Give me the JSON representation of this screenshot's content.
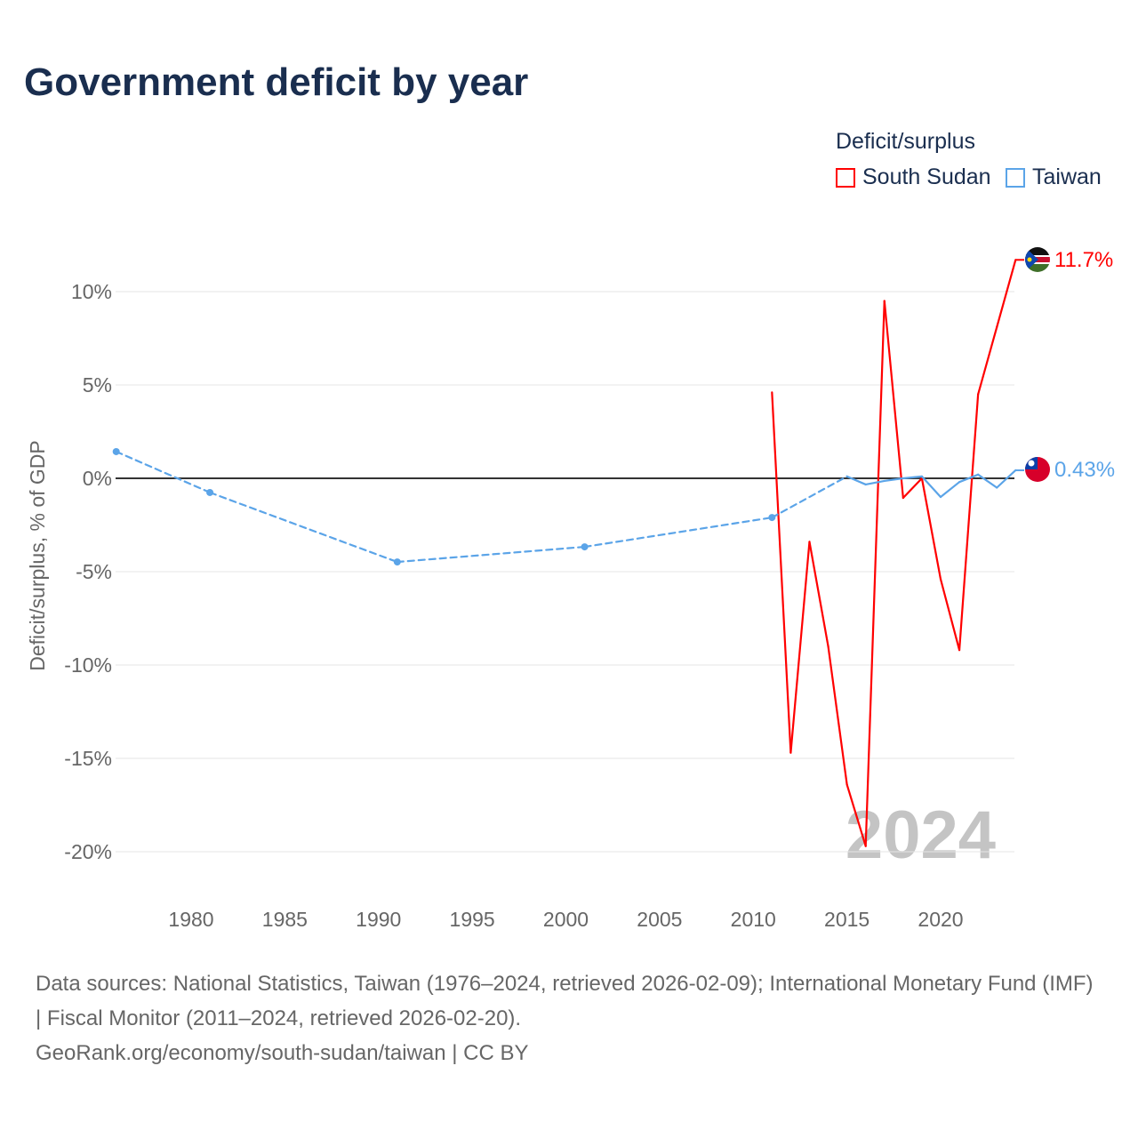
{
  "title": "Government deficit by year",
  "legend": {
    "title": "Deficit/surplus",
    "items": [
      "South Sudan",
      "Taiwan"
    ]
  },
  "footer": {
    "sources": "Data sources: National Statistics, Taiwan (1976–2024, retrieved 2026-02-09); International Monetary Fund (IMF) | Fiscal Monitor (2011–2024, retrieved 2026-02-20).",
    "link": "GeoRank.org/economy/south-sudan/taiwan | CC BY"
  },
  "chart_data": {
    "type": "line",
    "title": "Government deficit by year",
    "ylabel": "Deficit/surplus, % of GDP",
    "xlabel": "",
    "xlim": [
      1976,
      2024
    ],
    "ylim": [
      -22,
      13
    ],
    "xticks": [
      1980,
      1985,
      1990,
      1995,
      2000,
      2005,
      2010,
      2015,
      2020
    ],
    "xtick_labels": [
      "1980",
      "1985",
      "1990",
      "1995",
      "2000",
      "2005",
      "2010",
      "2015",
      "2020"
    ],
    "yticks": [
      10,
      5,
      0,
      -5,
      -10,
      -15,
      -20
    ],
    "ytick_labels": [
      "10%",
      "5%",
      "0%",
      "-5%",
      "-10%",
      "-15%",
      "-20%"
    ],
    "watermark_year": "2024",
    "grid": true,
    "legend_position": "top-right",
    "series": [
      {
        "name": "South Sudan",
        "color": "#ff0000",
        "end_label": "11.7%",
        "x": [
          2011,
          2012,
          2013,
          2014,
          2015,
          2016,
          2017,
          2018,
          2019,
          2020,
          2021,
          2022,
          2023,
          2024
        ],
        "y": [
          4.6,
          -14.7,
          -3.4,
          -9.0,
          -16.4,
          -19.7,
          9.5,
          -1.05,
          0.0,
          -5.4,
          -9.2,
          4.5,
          8.1,
          11.7
        ]
      },
      {
        "name": "Taiwan",
        "color": "#5ba4e8",
        "end_label": "0.43%",
        "x": [
          1976,
          1981,
          1991,
          2001,
          2011,
          2015,
          2016,
          2017,
          2018,
          2019,
          2020,
          2021,
          2022,
          2023,
          2024
        ],
        "y": [
          1.43,
          -0.76,
          -4.48,
          -3.67,
          -2.1,
          0.1,
          -0.33,
          -0.14,
          0.0,
          0.1,
          -1.0,
          -0.2,
          0.2,
          -0.5,
          0.43
        ],
        "sparse_until": 2015
      }
    ]
  }
}
